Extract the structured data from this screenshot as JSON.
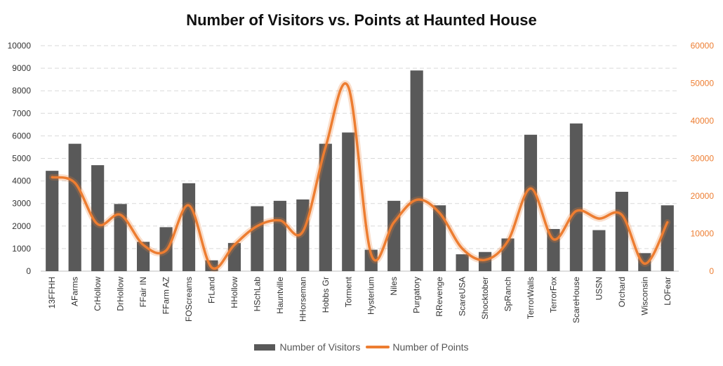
{
  "chart_data": {
    "type": "bar",
    "title": "Number of Visitors vs. Points at Haunted House",
    "categories": [
      "13FFHH",
      "AFarms",
      "CrHollow",
      "DrHollow",
      "FFair IN",
      "FFarm AZ",
      "FOScreams",
      "FrLand",
      "HHollow",
      "HSchLab",
      "Hauntville",
      "HHorseman",
      "Hobbs Gr",
      "Torment",
      "Hysterium",
      "Niles",
      "Purgatory",
      "RRevenge",
      "ScareUSA",
      "Shocktober",
      "SpRanch",
      "TerrorWalls",
      "TerrorFox",
      "ScareHouse",
      "USSN",
      "Orchard",
      "Wisconsin",
      "LOFear"
    ],
    "series": [
      {
        "name": "Number of Visitors",
        "type": "bar",
        "axis": "left",
        "color": "#595959",
        "values": [
          4450,
          5650,
          4700,
          2980,
          1300,
          1950,
          3900,
          480,
          1250,
          2880,
          3120,
          3180,
          5650,
          6150,
          950,
          3120,
          8900,
          2920,
          750,
          850,
          1450,
          6050,
          1870,
          6550,
          1820,
          3520,
          800,
          2920
        ]
      },
      {
        "name": "Number of Points",
        "type": "line",
        "axis": "right",
        "color": "#ED7D31",
        "smooth": true,
        "values": [
          25000,
          23500,
          12500,
          15000,
          7000,
          5500,
          17500,
          1000,
          7000,
          12000,
          13500,
          10500,
          33000,
          49000,
          4500,
          13000,
          19000,
          15500,
          6000,
          3000,
          8000,
          22000,
          8500,
          16000,
          14000,
          15000,
          2000,
          13000
        ]
      }
    ],
    "y_left": {
      "min": 0,
      "max": 10000,
      "ticks": [
        "0",
        "1000",
        "2000",
        "3000",
        "4000",
        "5000",
        "6000",
        "7000",
        "8000",
        "9000",
        "10000"
      ]
    },
    "y_right": {
      "min": 0,
      "max": 60000,
      "ticks": [
        "0",
        "10000",
        "20000",
        "30000",
        "40000",
        "50000",
        "60000"
      ]
    },
    "grid": true,
    "legend_position": "bottom"
  }
}
